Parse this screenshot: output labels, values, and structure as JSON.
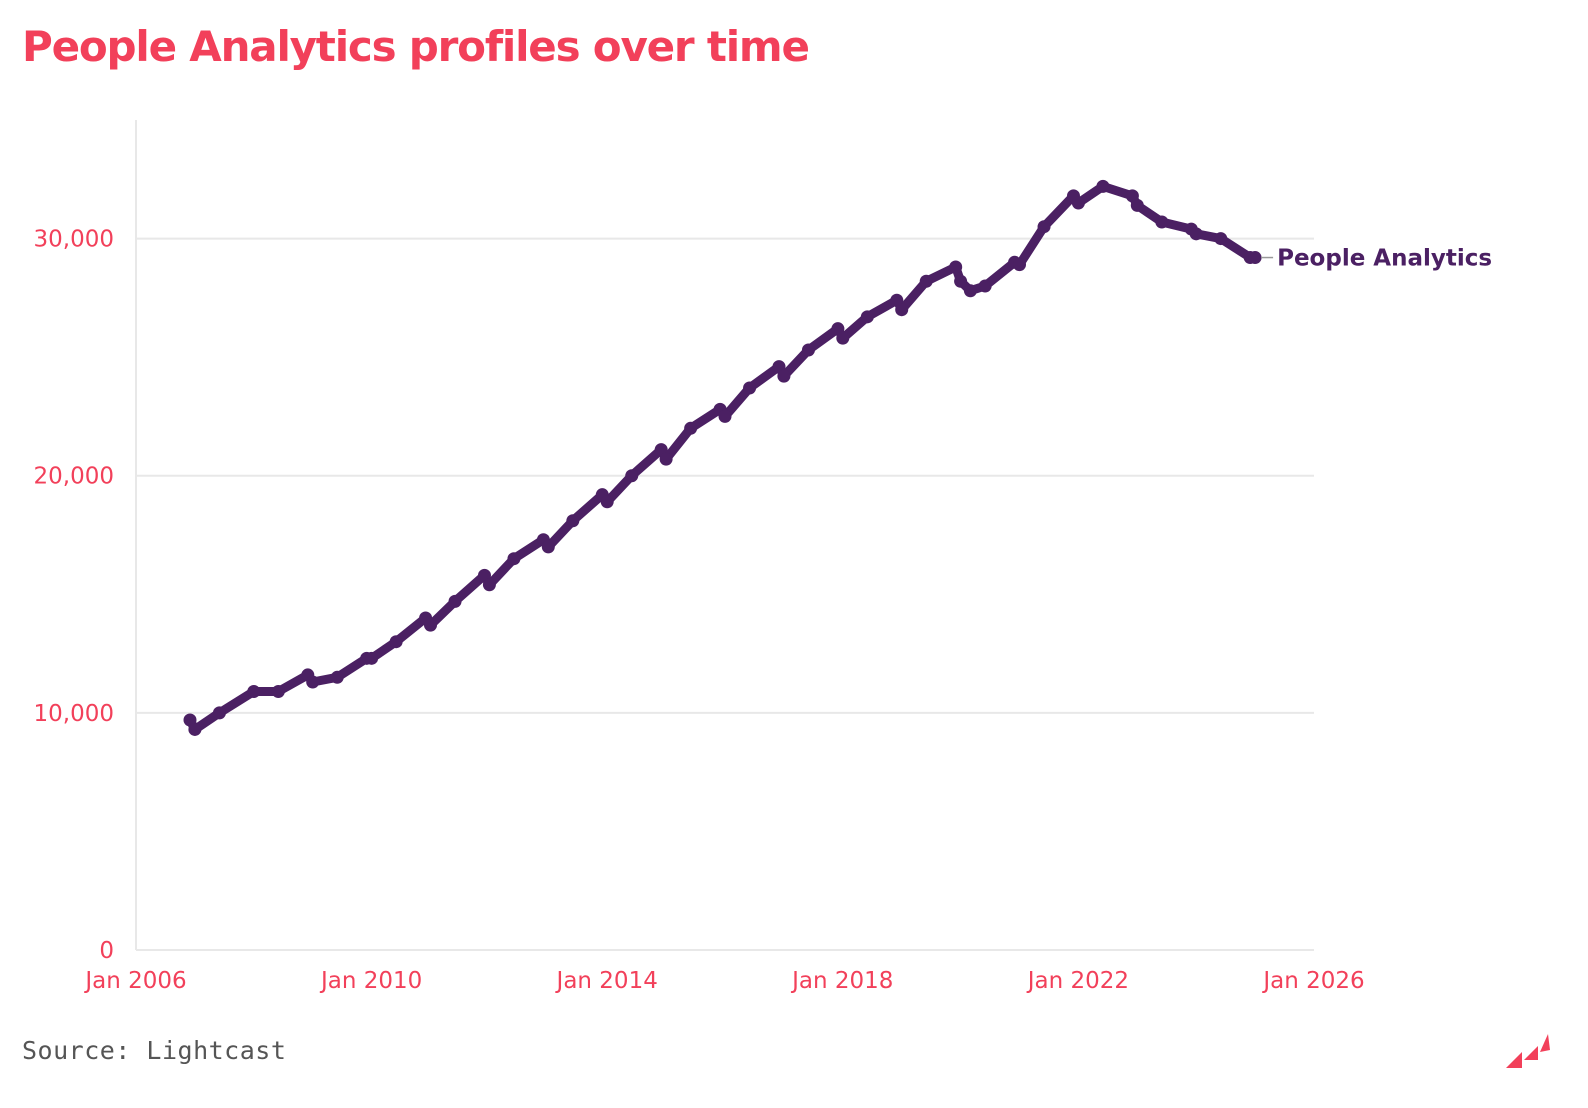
{
  "title": "People Analytics profiles over time",
  "source": "Source: Lightcast",
  "colors": {
    "accent": "#f2405a",
    "series": "#4b2063",
    "grid": "#e8e8e8"
  },
  "logo_icon": "lightcast-logo-icon",
  "chart_data": {
    "type": "line",
    "x_type": "date",
    "xlim": [
      "2006-01",
      "2026-01"
    ],
    "ylim": [
      0,
      35000
    ],
    "x_ticks": [
      "2006-01",
      "2010-01",
      "2014-01",
      "2018-01",
      "2022-01",
      "2026-01"
    ],
    "x_tick_labels": [
      "Jan 2006",
      "Jan 2010",
      "Jan 2014",
      "Jan 2018",
      "Jan 2022",
      "Jan 2026"
    ],
    "y_ticks": [
      0,
      10000,
      20000,
      30000
    ],
    "y_tick_labels": [
      "0",
      "10,000",
      "20,000",
      "30,000"
    ],
    "grid": true,
    "series": [
      {
        "name": "People Analytics",
        "x": [
          "2006-12",
          "2007-01",
          "2007-06",
          "2008-01",
          "2008-06",
          "2008-12",
          "2009-01",
          "2009-06",
          "2009-12",
          "2010-01",
          "2010-06",
          "2010-12",
          "2011-01",
          "2011-06",
          "2011-12",
          "2012-01",
          "2012-06",
          "2012-12",
          "2013-01",
          "2013-06",
          "2013-12",
          "2014-01",
          "2014-06",
          "2014-12",
          "2015-01",
          "2015-06",
          "2015-12",
          "2016-01",
          "2016-06",
          "2016-12",
          "2017-01",
          "2017-06",
          "2017-12",
          "2018-01",
          "2018-06",
          "2018-12",
          "2019-01",
          "2019-06",
          "2019-12",
          "2020-01",
          "2020-03",
          "2020-06",
          "2020-12",
          "2021-01",
          "2021-06",
          "2021-12",
          "2022-01",
          "2022-06",
          "2022-12",
          "2023-01",
          "2023-06",
          "2023-12",
          "2024-01",
          "2024-06",
          "2024-12",
          "2025-01"
        ],
        "y": [
          9700,
          9300,
          10000,
          10900,
          10900,
          11600,
          11300,
          11500,
          12300,
          12300,
          13000,
          14000,
          13700,
          14700,
          15800,
          15400,
          16500,
          17300,
          17000,
          18100,
          19200,
          18900,
          20000,
          21100,
          20700,
          22000,
          22800,
          22500,
          23700,
          24600,
          24200,
          25300,
          26200,
          25800,
          26700,
          27400,
          27000,
          28200,
          28800,
          28200,
          27800,
          28000,
          29000,
          28900,
          30500,
          31800,
          31500,
          32200,
          31800,
          31400,
          30700,
          30400,
          30200,
          30000,
          29200,
          29200
        ]
      }
    ]
  }
}
